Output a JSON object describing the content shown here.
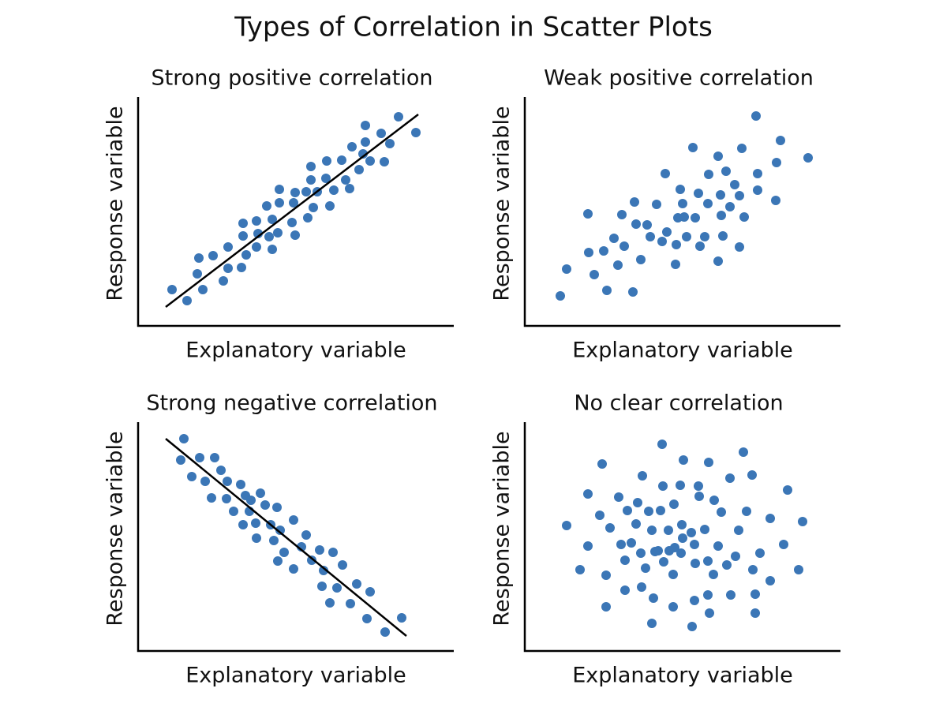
{
  "title": "Types of Correlation in Scatter Plots",
  "chart_data": [
    {
      "type": "scatter",
      "title": "Strong positive correlation",
      "xlabel": "Explanatory variable",
      "ylabel": "Response variable",
      "color": "#3b76b6",
      "xlim": [
        0,
        400
      ],
      "ylim": [
        0,
        290
      ],
      "x": [
        43,
        62,
        75,
        77,
        82,
        95,
        108,
        114,
        114,
        131,
        133,
        133,
        137,
        150,
        150,
        152,
        163,
        166,
        170,
        170,
        177,
        179,
        179,
        195,
        197,
        199,
        199,
        213,
        215,
        219,
        219,
        222,
        227,
        238,
        239,
        243,
        248,
        258,
        263,
        268,
        271,
        280,
        285,
        288,
        288,
        294,
        308,
        312,
        319,
        330,
        352
      ],
      "y": [
        46,
        32,
        66,
        86,
        46,
        89,
        57,
        73,
        100,
        74,
        114,
        130,
        90,
        133,
        100,
        117,
        152,
        113,
        97,
        135,
        118,
        173,
        156,
        131,
        156,
        115,
        169,
        170,
        137,
        185,
        202,
        150,
        170,
        187,
        209,
        152,
        172,
        210,
        185,
        174,
        227,
        198,
        218,
        254,
        233,
        209,
        244,
        208,
        231,
        265,
        245
      ],
      "line_x": [
        35,
        355
      ],
      "line_y": [
        24,
        268
      ]
    },
    {
      "type": "scatter",
      "title": "Weak positive correlation",
      "xlabel": "Explanatory variable",
      "ylabel": "Response variable",
      "color": "#3b76b6",
      "xlim": [
        0,
        400
      ],
      "ylim": [
        0,
        290
      ],
      "x": [
        45,
        53,
        80,
        81,
        88,
        100,
        104,
        113,
        118,
        123,
        126,
        137,
        139,
        141,
        147,
        155,
        159,
        167,
        174,
        178,
        180,
        191,
        192,
        194,
        197,
        200,
        202,
        205,
        213,
        216,
        220,
        222,
        228,
        232,
        233,
        245,
        245,
        248,
        249,
        251,
        255,
        260,
        266,
        272,
        272,
        275,
        278,
        293,
        295,
        295,
        318,
        319,
        324,
        359
      ],
      "y": [
        38,
        72,
        142,
        93,
        65,
        95,
        45,
        111,
        77,
        141,
        101,
        43,
        157,
        129,
        84,
        128,
        113,
        154,
        107,
        193,
        119,
        78,
        103,
        137,
        173,
        155,
        138,
        113,
        226,
        137,
        168,
        101,
        113,
        155,
        192,
        215,
        82,
        166,
        140,
        114,
        196,
        151,
        179,
        165,
        100,
        225,
        138,
        266,
        193,
        172,
        159,
        207,
        235,
        213
      ]
    },
    {
      "type": "scatter",
      "title": "Strong negative correlation",
      "xlabel": "Explanatory variable",
      "ylabel": "Response variable",
      "color": "#3b76b6",
      "xlim": [
        0,
        400
      ],
      "ylim": [
        0,
        290
      ],
      "x": [
        58,
        54,
        78,
        97,
        68,
        85,
        105,
        113,
        93,
        112,
        130,
        136,
        155,
        121,
        143,
        133,
        149,
        141,
        161,
        176,
        168,
        150,
        172,
        180,
        197,
        177,
        185,
        197,
        213,
        207,
        220,
        230,
        235,
        233,
        247,
        252,
        259,
        277,
        243,
        269,
        294,
        290,
        313,
        334
      ],
      "y": [
        269,
        242,
        245,
        245,
        221,
        215,
        229,
        215,
        194,
        193,
        211,
        197,
        200,
        177,
        191,
        160,
        162,
        177,
        185,
        182,
        160,
        143,
        140,
        153,
        166,
        114,
        125,
        104,
        147,
        132,
        115,
        128,
        102,
        82,
        125,
        80,
        109,
        85,
        61,
        60,
        75,
        41,
        24,
        42
      ],
      "line_x": [
        35,
        340
      ],
      "line_y": [
        269,
        19
      ]
    },
    {
      "type": "scatter",
      "title": "No clear correlation",
      "xlabel": "Explanatory variable",
      "ylabel": "Response variable",
      "color": "#3b76b6",
      "xlim": [
        0,
        400
      ],
      "ylim": [
        0,
        290
      ],
      "x": [
        174,
        98,
        201,
        233,
        277,
        80,
        149,
        175,
        197,
        220,
        260,
        288,
        333,
        53,
        95,
        108,
        119,
        130,
        141,
        143,
        157,
        172,
        189,
        199,
        221,
        240,
        249,
        281,
        311,
        352,
        80,
        122,
        135,
        147,
        161,
        169,
        182,
        190,
        200,
        211,
        228,
        215,
        245,
        271,
        298,
        328,
        70,
        103,
        127,
        153,
        165,
        176,
        188,
        198,
        216,
        232,
        239,
        256,
        267,
        289,
        311,
        347,
        127,
        148,
        163,
        188,
        215,
        232,
        261,
        292,
        103,
        161,
        212,
        234,
        292,
        183
      ],
      "y": [
        262,
        237,
        242,
        239,
        252,
        199,
        222,
        209,
        210,
        209,
        219,
        223,
        204,
        159,
        172,
        156,
        195,
        178,
        161,
        188,
        177,
        178,
        186,
        160,
        196,
        191,
        176,
        177,
        168,
        164,
        133,
        135,
        137,
        124,
        153,
        127,
        153,
        131,
        143,
        150,
        154,
        135,
        133,
        153,
        124,
        135,
        103,
        96,
        115,
        105,
        126,
        113,
        97,
        124,
        111,
        114,
        97,
        109,
        120,
        103,
        89,
        103,
        77,
        81,
        67,
        56,
        64,
        71,
        71,
        72,
        56,
        35,
        31,
        48,
        48,
        127
      ]
    }
  ]
}
